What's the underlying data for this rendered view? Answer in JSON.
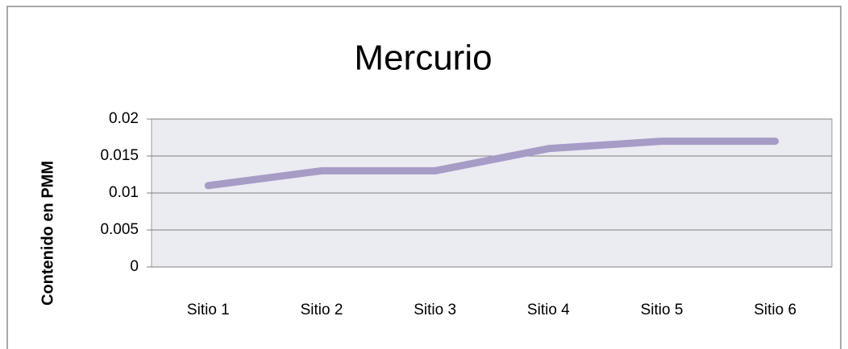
{
  "chart_data": {
    "type": "line",
    "title": "Mercurio",
    "ylabel": "Contenido en PMM",
    "categories": [
      "Sitio 1",
      "Sitio 2",
      "Sitio 3",
      "Sitio 4",
      "Sitio 5",
      "Sitio 6"
    ],
    "values": [
      0.011,
      0.013,
      0.013,
      0.016,
      0.017,
      0.017
    ],
    "color": "#a79cc6",
    "ylim": [
      0,
      0.02
    ],
    "yticks": [
      0,
      0.005,
      0.01,
      0.015,
      0.02
    ],
    "grid": true
  }
}
